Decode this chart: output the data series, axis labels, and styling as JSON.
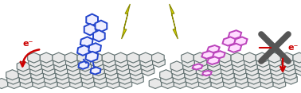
{
  "bg_color": "#ffffff",
  "graphene_color": "#607070",
  "graphene_face": "#e8e8e8",
  "graphene_lw": 0.8,
  "pyrene_left_color": "#2244cc",
  "pyrene_right_color": "#bb44bb",
  "lightning_color": "#dddd00",
  "lightning_edge": "#888800",
  "arrow_color": "#cc0000",
  "cross_color": "#555555",
  "text_color": "#cc0000",
  "text_eminus": "e⁻",
  "figsize": [
    3.78,
    1.17
  ],
  "dpi": 100
}
